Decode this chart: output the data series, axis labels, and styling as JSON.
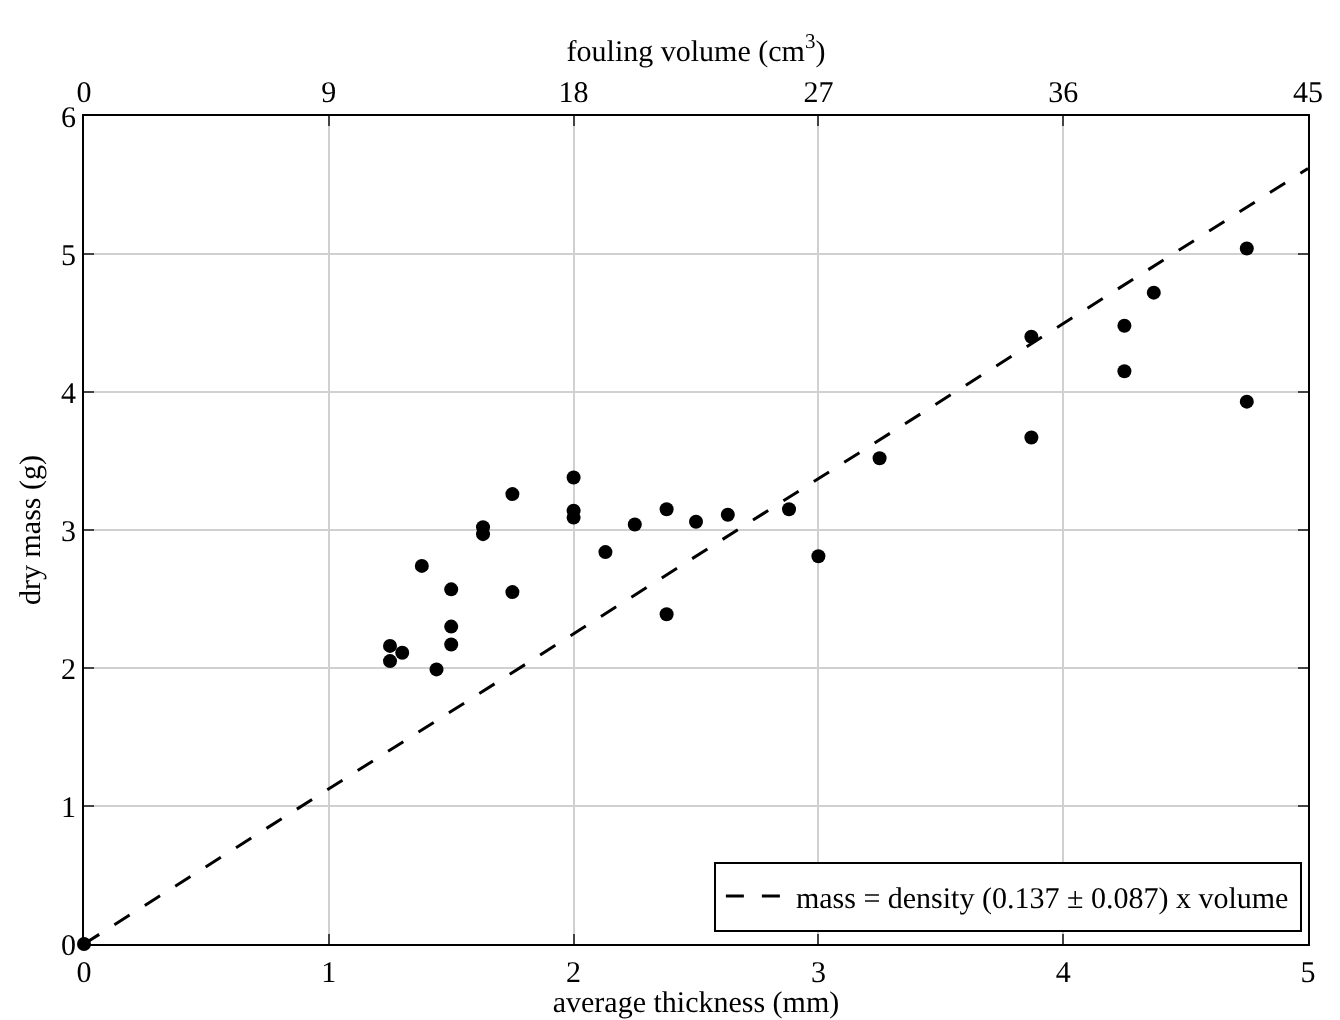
{
  "chart_data": {
    "type": "scatter",
    "xlabel": "average thickness (mm)",
    "ylabel": "dry mass (g)",
    "x2label": "fouling volume (cm$^{3}$)",
    "xlim": [
      0,
      5
    ],
    "xticks": [
      0,
      1,
      2,
      3,
      4,
      5
    ],
    "ylim": [
      0,
      6
    ],
    "yticks": [
      0,
      1,
      2,
      3,
      4,
      5,
      6
    ],
    "x2lim": [
      0,
      45
    ],
    "x2ticks": [
      0,
      9,
      18,
      27,
      36,
      45
    ],
    "grid": true,
    "legend": "bottom right",
    "series": [
      {
        "color": "#000000",
        "marker": "circle",
        "x": [
          0,
          1.25,
          1.25,
          1.3,
          1.38,
          1.44,
          1.5,
          1.5,
          1.5,
          1.63,
          1.63,
          1.75,
          1.75,
          2.0,
          2.0,
          2.0,
          2.13,
          2.25,
          2.38,
          2.38,
          2.5,
          2.63,
          2.88,
          3.0,
          3.25,
          3.87,
          3.87,
          4.25,
          4.25,
          4.37,
          4.75,
          4.75
        ],
        "values": [
          0,
          2.16,
          2.05,
          2.11,
          2.74,
          1.99,
          2.57,
          2.3,
          2.17,
          3.02,
          2.97,
          3.26,
          2.55,
          3.38,
          3.14,
          3.09,
          2.84,
          3.04,
          3.15,
          2.39,
          3.06,
          3.11,
          3.15,
          2.81,
          3.52,
          3.67,
          4.4,
          4.48,
          4.15,
          4.72,
          3.93,
          5.04
        ]
      },
      {
        "type": "line",
        "name": "mass = density (0.137 ± 0.087) x volume",
        "color": "#000000",
        "marker": "none",
        "line_style": "dashed",
        "x": [
          0,
          5
        ],
        "values": [
          0,
          5.62
        ]
      }
    ]
  }
}
